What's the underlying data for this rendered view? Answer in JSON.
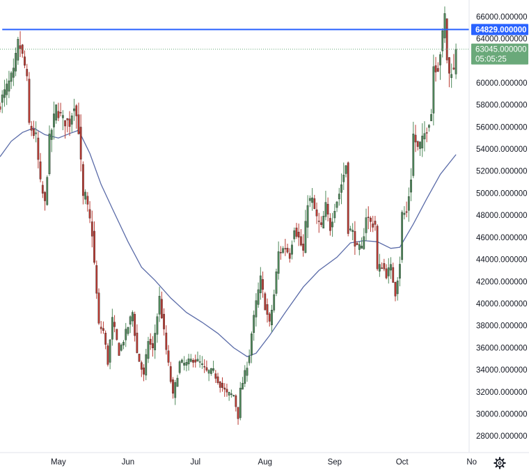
{
  "colors": {
    "up": "#4f8a5b",
    "down": "#b93a32",
    "ma": "#5a6ba8",
    "hline": "#2962ff",
    "last_tag": "#6aa97a",
    "axis_text": "#131722"
  },
  "icons": {
    "settings": "gear-icon"
  },
  "chart_data": {
    "type": "candlestick",
    "ylim": [
      26500,
      67500
    ],
    "x_range": [
      "2021-04-05",
      "2021-10-29"
    ],
    "y_ticks": [
      "28000.000000",
      "30000.000000",
      "32000.000000",
      "34000.000000",
      "36000.000000",
      "38000.000000",
      "40000.000000",
      "42000.000000",
      "44000.000000",
      "46000.000000",
      "48000.000000",
      "50000.000000",
      "52000.000000",
      "54000.000000",
      "56000.000000",
      "58000.000000",
      "60000.000000",
      "62000.000000",
      "64000.000000",
      "66000.000000"
    ],
    "x_ticks": [
      {
        "label": "May",
        "date": "2021-05-01"
      },
      {
        "label": "Jun",
        "date": "2021-06-01"
      },
      {
        "label": "Jul",
        "date": "2021-07-01"
      },
      {
        "label": "Aug",
        "date": "2021-08-01"
      },
      {
        "label": "Sep",
        "date": "2021-09-01"
      },
      {
        "label": "Oct",
        "date": "2021-10-01"
      },
      {
        "label": "No",
        "date": "2021-11-01"
      }
    ],
    "horizontal_line": {
      "value": 64829,
      "label": "64829.000000",
      "start_date": "2021-04-06"
    },
    "last_price": {
      "value": 63045,
      "label": "63045.000000",
      "countdown": "05:05:25"
    },
    "closes": [
      {
        "date": "2021-04-05",
        "close": 58200
      },
      {
        "date": "2021-04-08",
        "close": 59500
      },
      {
        "date": "2021-04-11",
        "close": 60800
      },
      {
        "date": "2021-04-13",
        "close": 63500
      },
      {
        "date": "2021-04-14",
        "close": 63200
      },
      {
        "date": "2021-04-16",
        "close": 61500
      },
      {
        "date": "2021-04-17",
        "close": 60100
      },
      {
        "date": "2021-04-18",
        "close": 56200
      },
      {
        "date": "2021-04-21",
        "close": 55000
      },
      {
        "date": "2021-04-23",
        "close": 50800
      },
      {
        "date": "2021-04-25",
        "close": 49000
      },
      {
        "date": "2021-04-27",
        "close": 54800
      },
      {
        "date": "2021-04-30",
        "close": 57700
      },
      {
        "date": "2021-05-03",
        "close": 56600
      },
      {
        "date": "2021-05-06",
        "close": 56400
      },
      {
        "date": "2021-05-08",
        "close": 58200
      },
      {
        "date": "2021-05-10",
        "close": 55800
      },
      {
        "date": "2021-05-12",
        "close": 49500
      },
      {
        "date": "2021-05-13",
        "close": 49700
      },
      {
        "date": "2021-05-16",
        "close": 46400
      },
      {
        "date": "2021-05-19",
        "close": 38000
      },
      {
        "date": "2021-05-21",
        "close": 37500
      },
      {
        "date": "2021-05-23",
        "close": 34700
      },
      {
        "date": "2021-05-25",
        "close": 38500
      },
      {
        "date": "2021-05-28",
        "close": 35600
      },
      {
        "date": "2021-05-31",
        "close": 37300
      },
      {
        "date": "2021-06-03",
        "close": 39200
      },
      {
        "date": "2021-06-05",
        "close": 35500
      },
      {
        "date": "2021-06-08",
        "close": 33400
      },
      {
        "date": "2021-06-10",
        "close": 36700
      },
      {
        "date": "2021-06-12",
        "close": 35800
      },
      {
        "date": "2021-06-15",
        "close": 40500
      },
      {
        "date": "2021-06-18",
        "close": 35800
      },
      {
        "date": "2021-06-21",
        "close": 31600
      },
      {
        "date": "2021-06-24",
        "close": 34600
      },
      {
        "date": "2021-06-27",
        "close": 34500
      },
      {
        "date": "2021-06-30",
        "close": 35000
      },
      {
        "date": "2021-07-03",
        "close": 34600
      },
      {
        "date": "2021-07-06",
        "close": 33800
      },
      {
        "date": "2021-07-09",
        "close": 33800
      },
      {
        "date": "2021-07-12",
        "close": 32700
      },
      {
        "date": "2021-07-15",
        "close": 31800
      },
      {
        "date": "2021-07-18",
        "close": 31700
      },
      {
        "date": "2021-07-20",
        "close": 29800
      },
      {
        "date": "2021-07-21",
        "close": 32100
      },
      {
        "date": "2021-07-23",
        "close": 33600
      },
      {
        "date": "2021-07-25",
        "close": 35400
      },
      {
        "date": "2021-07-26",
        "close": 37300
      },
      {
        "date": "2021-07-28",
        "close": 40000
      },
      {
        "date": "2021-07-30",
        "close": 42200
      },
      {
        "date": "2021-08-01",
        "close": 39800
      },
      {
        "date": "2021-08-03",
        "close": 38100
      },
      {
        "date": "2021-08-05",
        "close": 40800
      },
      {
        "date": "2021-08-07",
        "close": 44600
      },
      {
        "date": "2021-08-10",
        "close": 45100
      },
      {
        "date": "2021-08-12",
        "close": 44400
      },
      {
        "date": "2021-08-14",
        "close": 47000
      },
      {
        "date": "2021-08-16",
        "close": 45900
      },
      {
        "date": "2021-08-18",
        "close": 44700
      },
      {
        "date": "2021-08-20",
        "close": 49300
      },
      {
        "date": "2021-08-22",
        "close": 49300
      },
      {
        "date": "2021-08-24",
        "close": 47700
      },
      {
        "date": "2021-08-26",
        "close": 46800
      },
      {
        "date": "2021-08-28",
        "close": 48800
      },
      {
        "date": "2021-08-30",
        "close": 46900
      },
      {
        "date": "2021-09-01",
        "close": 48800
      },
      {
        "date": "2021-09-03",
        "close": 50000
      },
      {
        "date": "2021-09-05",
        "close": 51700
      },
      {
        "date": "2021-09-06",
        "close": 52600
      },
      {
        "date": "2021-09-07",
        "close": 46800
      },
      {
        "date": "2021-09-09",
        "close": 46400
      },
      {
        "date": "2021-09-11",
        "close": 44900
      },
      {
        "date": "2021-09-13",
        "close": 44900
      },
      {
        "date": "2021-09-15",
        "close": 48000
      },
      {
        "date": "2021-09-17",
        "close": 47300
      },
      {
        "date": "2021-09-19",
        "close": 47200
      },
      {
        "date": "2021-09-20",
        "close": 43000
      },
      {
        "date": "2021-09-22",
        "close": 43500
      },
      {
        "date": "2021-09-24",
        "close": 42700
      },
      {
        "date": "2021-09-26",
        "close": 43200
      },
      {
        "date": "2021-09-28",
        "close": 41000
      },
      {
        "date": "2021-09-30",
        "close": 43800
      },
      {
        "date": "2021-10-01",
        "close": 48100
      },
      {
        "date": "2021-10-03",
        "close": 48200
      },
      {
        "date": "2021-10-05",
        "close": 51500
      },
      {
        "date": "2021-10-06",
        "close": 55300
      },
      {
        "date": "2021-10-08",
        "close": 54000
      },
      {
        "date": "2021-10-10",
        "close": 54700
      },
      {
        "date": "2021-10-12",
        "close": 56000
      },
      {
        "date": "2021-10-14",
        "close": 57300
      },
      {
        "date": "2021-10-15",
        "close": 61600
      },
      {
        "date": "2021-10-17",
        "close": 61500
      },
      {
        "date": "2021-10-19",
        "close": 64200
      },
      {
        "date": "2021-10-20",
        "close": 66000
      },
      {
        "date": "2021-10-21",
        "close": 62200
      },
      {
        "date": "2021-10-22",
        "close": 60700
      },
      {
        "date": "2021-10-23",
        "close": 61300
      },
      {
        "date": "2021-10-24",
        "close": 61000
      },
      {
        "date": "2021-10-25",
        "close": 63045
      }
    ],
    "moving_average": [
      {
        "date": "2021-04-05",
        "value": 53300
      },
      {
        "date": "2021-04-10",
        "value": 54700
      },
      {
        "date": "2021-04-15",
        "value": 55500
      },
      {
        "date": "2021-04-20",
        "value": 55900
      },
      {
        "date": "2021-04-25",
        "value": 55300
      },
      {
        "date": "2021-05-01",
        "value": 55000
      },
      {
        "date": "2021-05-06",
        "value": 55400
      },
      {
        "date": "2021-05-10",
        "value": 55700
      },
      {
        "date": "2021-05-15",
        "value": 53600
      },
      {
        "date": "2021-05-20",
        "value": 50800
      },
      {
        "date": "2021-05-25",
        "value": 48600
      },
      {
        "date": "2021-06-01",
        "value": 45600
      },
      {
        "date": "2021-06-07",
        "value": 43300
      },
      {
        "date": "2021-06-13",
        "value": 42100
      },
      {
        "date": "2021-06-20",
        "value": 40500
      },
      {
        "date": "2021-06-27",
        "value": 39200
      },
      {
        "date": "2021-07-04",
        "value": 38300
      },
      {
        "date": "2021-07-11",
        "value": 37300
      },
      {
        "date": "2021-07-18",
        "value": 36000
      },
      {
        "date": "2021-07-24",
        "value": 35200
      },
      {
        "date": "2021-07-28",
        "value": 35500
      },
      {
        "date": "2021-08-03",
        "value": 37100
      },
      {
        "date": "2021-08-10",
        "value": 39200
      },
      {
        "date": "2021-08-18",
        "value": 41500
      },
      {
        "date": "2021-08-25",
        "value": 43000
      },
      {
        "date": "2021-09-02",
        "value": 44200
      },
      {
        "date": "2021-09-08",
        "value": 45500
      },
      {
        "date": "2021-09-14",
        "value": 45700
      },
      {
        "date": "2021-09-20",
        "value": 45600
      },
      {
        "date": "2021-09-26",
        "value": 45000
      },
      {
        "date": "2021-09-30",
        "value": 45100
      },
      {
        "date": "2021-10-06",
        "value": 47200
      },
      {
        "date": "2021-10-12",
        "value": 49500
      },
      {
        "date": "2021-10-18",
        "value": 51700
      },
      {
        "date": "2021-10-25",
        "value": 53500
      }
    ]
  }
}
